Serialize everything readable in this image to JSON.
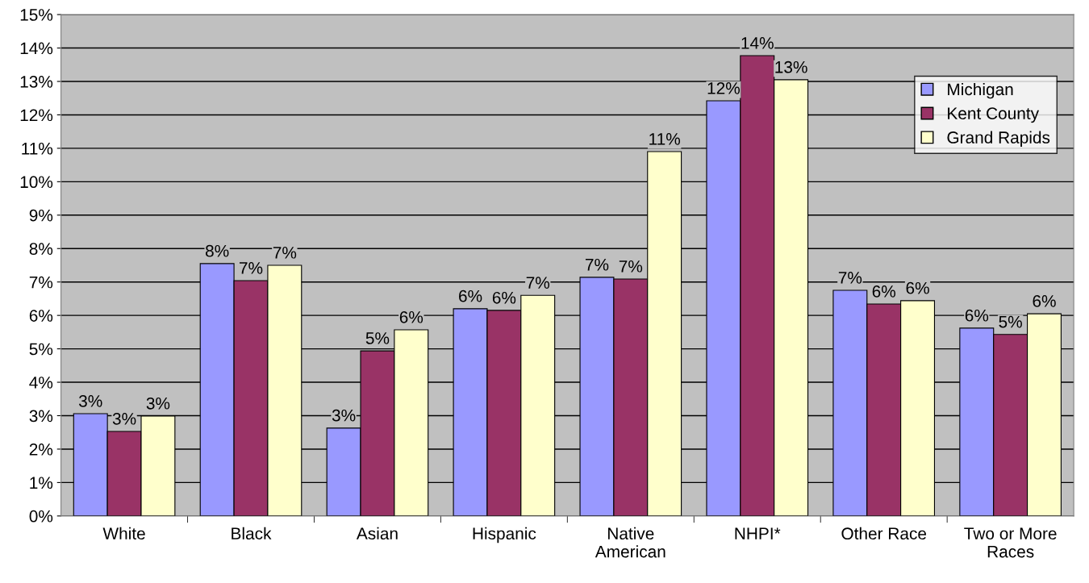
{
  "chart_data": {
    "type": "bar",
    "categories": [
      "White",
      "Black",
      "Asian",
      "Hispanic",
      "Native\nAmerican",
      "NHPI*",
      "Other Race",
      "Two or More\nRaces"
    ],
    "series": [
      {
        "name": "Michigan",
        "color": "#9999ff",
        "values": [
          3.06,
          7.55,
          2.63,
          6.2,
          7.14,
          12.42,
          6.75,
          5.62
        ],
        "value_labels": [
          "3%",
          "8%",
          "3%",
          "6%",
          "7%",
          "12%",
          "7%",
          "6%"
        ]
      },
      {
        "name": "Kent County",
        "color": "#993366",
        "values": [
          2.53,
          7.04,
          4.94,
          6.15,
          7.09,
          13.77,
          6.34,
          5.43
        ],
        "value_labels": [
          "3%",
          "7%",
          "5%",
          "6%",
          "7%",
          "14%",
          "6%",
          "5%"
        ]
      },
      {
        "name": "Grand Rapids",
        "color": "#ffffcc",
        "values": [
          2.99,
          7.5,
          5.57,
          6.6,
          10.9,
          13.05,
          6.44,
          6.05
        ],
        "value_labels": [
          "3%",
          "7%",
          "6%",
          "7%",
          "11%",
          "13%",
          "6%",
          "6%"
        ]
      }
    ],
    "ylim": [
      0,
      15
    ],
    "yticks": [
      {
        "value": 0,
        "label": "0%"
      },
      {
        "value": 1,
        "label": "1%"
      },
      {
        "value": 2,
        "label": "2%"
      },
      {
        "value": 3,
        "label": "3%"
      },
      {
        "value": 4,
        "label": "4%"
      },
      {
        "value": 5,
        "label": "5%"
      },
      {
        "value": 6,
        "label": "6%"
      },
      {
        "value": 7,
        "label": "7%"
      },
      {
        "value": 8,
        "label": "8%"
      },
      {
        "value": 9,
        "label": "9%"
      },
      {
        "value": 10,
        "label": "10%"
      },
      {
        "value": 11,
        "label": "11%"
      },
      {
        "value": 12,
        "label": "12%"
      },
      {
        "value": 13,
        "label": "13%"
      },
      {
        "value": 14,
        "label": "14%"
      },
      {
        "value": 15,
        "label": "15%"
      }
    ],
    "grid": "y",
    "legend": "right"
  }
}
